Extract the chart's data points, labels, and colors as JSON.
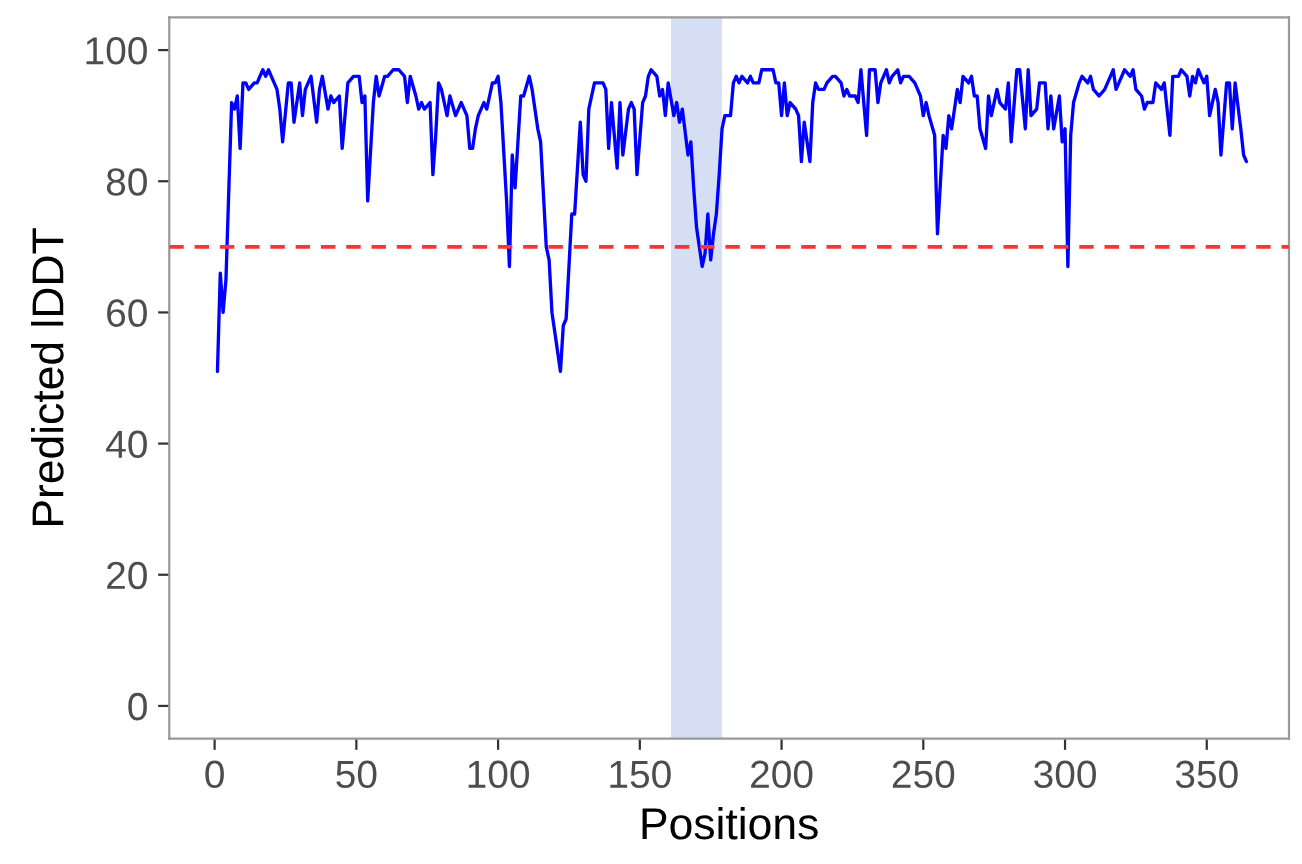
{
  "chart_data": {
    "type": "line",
    "xlabel": "Positions",
    "ylabel": "Predicted lDDT",
    "xlim": [
      -16,
      379
    ],
    "ylim": [
      -5,
      105
    ],
    "xticks": [
      0,
      50,
      100,
      150,
      200,
      250,
      300,
      350
    ],
    "yticks": [
      0,
      20,
      40,
      60,
      80,
      100
    ],
    "grid": false,
    "legend": false,
    "marker": "none",
    "line_style": "solid",
    "ref_lines": [
      {
        "axis": "y",
        "value": 70,
        "label": null,
        "color": "#ff3333",
        "line_style": "dashed"
      }
    ],
    "bands": [
      {
        "axis": "x",
        "from": 161,
        "to": 179,
        "label": null,
        "color": "#d5def2"
      }
    ],
    "series": [
      {
        "color": "#0000ff",
        "x": [
          1,
          2,
          3,
          4,
          6,
          7,
          8,
          9,
          10,
          11,
          12,
          14,
          15,
          17,
          18,
          19,
          20,
          22,
          23,
          24,
          26,
          27,
          28,
          30,
          31,
          32,
          34,
          36,
          37,
          38,
          40,
          41,
          42,
          44,
          45,
          47,
          49,
          51,
          52,
          53,
          54,
          56,
          57,
          58,
          60,
          61,
          63,
          64,
          65,
          67,
          68,
          69,
          71,
          72,
          73,
          74,
          76,
          77,
          78,
          79,
          80,
          82,
          83,
          85,
          87,
          89,
          90,
          91,
          92,
          93,
          95,
          96,
          97,
          98,
          99,
          100,
          101,
          103,
          104,
          105,
          106,
          108,
          109,
          111,
          112,
          114,
          115,
          117,
          118,
          119,
          120,
          122,
          123,
          124,
          126,
          127,
          129,
          130,
          131,
          132,
          134,
          135,
          137,
          138,
          139,
          140,
          142,
          143,
          144,
          146,
          147,
          148,
          149,
          151,
          152,
          153,
          154,
          156,
          157,
          158,
          159,
          160,
          162,
          163,
          164,
          165,
          167,
          168,
          169,
          170,
          172,
          173,
          174,
          175,
          176,
          177,
          178,
          179,
          180,
          182,
          183,
          184,
          185,
          186,
          188,
          189,
          190,
          192,
          193,
          195,
          197,
          198,
          199,
          200,
          201,
          202,
          203,
          205,
          206,
          207,
          208,
          210,
          211,
          212,
          213,
          215,
          216,
          218,
          219,
          221,
          222,
          223,
          224,
          226,
          227,
          228,
          229,
          230,
          231,
          233,
          234,
          235,
          237,
          238,
          239,
          241,
          242,
          243,
          245,
          247,
          249,
          250,
          251,
          252,
          254,
          255,
          257,
          258,
          259,
          260,
          262,
          263,
          264,
          266,
          267,
          268,
          269,
          270,
          272,
          273,
          274,
          276,
          277,
          279,
          280,
          281,
          283,
          284,
          286,
          287,
          288,
          290,
          291,
          293,
          294,
          295,
          296,
          298,
          299,
          300,
          301,
          302,
          303,
          305,
          306,
          308,
          309,
          310,
          312,
          314,
          316,
          317,
          318,
          320,
          321,
          323,
          324,
          325,
          327,
          328,
          329,
          331,
          332,
          334,
          335,
          337,
          338,
          340,
          341,
          343,
          344,
          345,
          346,
          347,
          349,
          350,
          351,
          353,
          354,
          355,
          357,
          358,
          359,
          360,
          362,
          363,
          364
        ],
        "values": [
          51,
          66,
          60,
          65,
          92,
          91,
          93,
          85,
          95,
          95,
          94,
          95,
          95,
          97,
          96,
          97,
          96,
          94,
          91,
          86,
          95,
          95,
          89,
          95,
          90,
          94,
          96,
          89,
          94,
          96,
          91,
          93,
          92,
          93,
          85,
          95,
          96,
          96,
          92,
          93,
          77,
          92,
          96,
          93,
          96,
          96,
          97,
          97,
          97,
          96,
          92,
          96,
          93,
          91,
          92,
          91,
          92,
          81,
          87,
          95,
          94,
          90,
          93,
          90,
          92,
          90,
          85,
          85,
          88,
          90,
          92,
          91,
          93,
          95,
          95,
          96,
          92,
          77,
          67,
          84,
          79,
          93,
          93,
          96,
          94,
          88,
          86,
          70,
          68,
          60,
          57,
          51,
          58,
          59,
          75,
          75,
          89,
          81,
          80,
          91,
          95,
          95,
          95,
          94,
          85,
          92,
          82,
          92,
          84,
          91,
          92,
          91,
          81,
          92,
          93,
          96,
          97,
          96,
          93,
          94,
          90,
          95,
          90,
          92,
          89,
          91,
          84,
          86,
          79,
          73,
          67,
          69,
          75,
          68,
          72,
          75,
          81,
          88,
          90,
          90,
          95,
          96,
          95,
          96,
          95,
          96,
          95,
          95,
          97,
          97,
          97,
          95,
          95,
          90,
          95,
          90,
          92,
          91,
          90,
          83,
          89,
          83,
          92,
          95,
          94,
          94,
          95,
          96,
          96,
          95,
          93,
          94,
          93,
          93,
          92,
          97,
          92,
          87,
          97,
          97,
          92,
          95,
          97,
          95,
          96,
          97,
          95,
          96,
          96,
          95,
          93,
          90,
          92,
          90,
          87,
          72,
          87,
          85,
          90,
          88,
          94,
          92,
          96,
          95,
          96,
          93,
          93,
          88,
          85,
          93,
          90,
          94,
          92,
          91,
          95,
          86,
          97,
          97,
          88,
          97,
          90,
          91,
          95,
          95,
          88,
          93,
          88,
          93,
          86,
          88,
          67,
          87,
          92,
          95,
          96,
          95,
          96,
          94,
          93,
          94,
          96,
          97,
          94,
          96,
          97,
          96,
          97,
          94,
          93,
          91,
          92,
          92,
          95,
          94,
          95,
          87,
          96,
          96,
          97,
          96,
          93,
          96,
          95,
          97,
          95,
          96,
          90,
          94,
          92,
          84,
          95,
          95,
          88,
          95,
          88,
          84,
          83
        ]
      }
    ]
  }
}
